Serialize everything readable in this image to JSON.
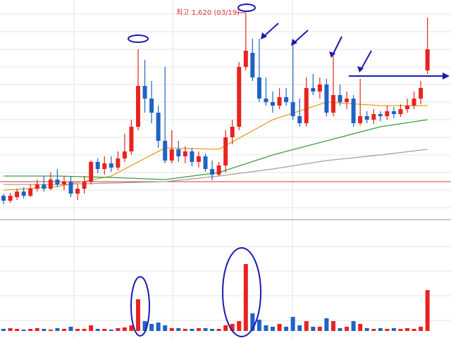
{
  "chart_data": {
    "type": "candlestick",
    "high_label": "최고 1,620 (03/19)",
    "ylim": [
      1036,
      1656
    ],
    "vlim": [
      0,
      155
    ],
    "up_color": "#e8231f",
    "down_color": "#1f63c4",
    "reference_line": {
      "value": 1140,
      "color": "#e03030"
    },
    "open": [
      1100,
      1086,
      1096,
      1112,
      1100,
      1120,
      1132,
      1120,
      1146,
      1132,
      1140,
      1106,
      1120,
      1140,
      1196,
      1176,
      1192,
      1180,
      1206,
      1226,
      1296,
      1412,
      1376,
      1336,
      1256,
      1200,
      1232,
      1212,
      1226,
      1196,
      1212,
      1176,
      1160,
      1186,
      1266,
      1296,
      1466,
      1506,
      1436,
      1376,
      1366,
      1356,
      1380,
      1366,
      1326,
      1306,
      1406,
      1396,
      1416,
      1336,
      1386,
      1366,
      1376,
      1306,
      1326,
      1316,
      1332,
      1326,
      1340,
      1332,
      1346,
      1356,
      1376,
      1456
    ],
    "high": [
      1106,
      1108,
      1120,
      1124,
      1132,
      1146,
      1156,
      1166,
      1176,
      1156,
      1156,
      1132,
      1156,
      1200,
      1206,
      1212,
      1212,
      1226,
      1276,
      1316,
      1516,
      1486,
      1426,
      1356,
      1466,
      1286,
      1256,
      1240,
      1236,
      1226,
      1220,
      1200,
      1196,
      1286,
      1316,
      1480,
      1620,
      1546,
      1546,
      1436,
      1396,
      1406,
      1406,
      1532,
      1376,
      1436,
      1446,
      1436,
      1432,
      1496,
      1416,
      1396,
      1386,
      1432,
      1340,
      1346,
      1340,
      1356,
      1352,
      1360,
      1376,
      1396,
      1426,
      1606
    ],
    "low": [
      1076,
      1080,
      1088,
      1092,
      1096,
      1112,
      1112,
      1116,
      1124,
      1116,
      1096,
      1088,
      1106,
      1132,
      1164,
      1160,
      1168,
      1172,
      1196,
      1216,
      1286,
      1336,
      1306,
      1236,
      1192,
      1192,
      1196,
      1192,
      1184,
      1180,
      1168,
      1144,
      1156,
      1166,
      1246,
      1286,
      1456,
      1426,
      1366,
      1356,
      1336,
      1346,
      1356,
      1316,
      1296,
      1296,
      1386,
      1376,
      1326,
      1326,
      1356,
      1346,
      1296,
      1300,
      1306,
      1304,
      1312,
      1316,
      1320,
      1324,
      1336,
      1346,
      1360,
      1446
    ],
    "close": [
      1086,
      1100,
      1112,
      1100,
      1120,
      1132,
      1120,
      1146,
      1132,
      1140,
      1106,
      1120,
      1140,
      1196,
      1176,
      1192,
      1180,
      1206,
      1226,
      1296,
      1412,
      1376,
      1336,
      1256,
      1200,
      1232,
      1212,
      1226,
      1196,
      1212,
      1176,
      1160,
      1186,
      1266,
      1296,
      1466,
      1512,
      1436,
      1376,
      1366,
      1356,
      1380,
      1366,
      1326,
      1306,
      1406,
      1396,
      1416,
      1336,
      1386,
      1366,
      1376,
      1306,
      1326,
      1316,
      1332,
      1326,
      1340,
      1332,
      1346,
      1356,
      1376,
      1406,
      1516
    ],
    "volume": [
      3,
      4,
      3,
      2,
      3,
      4,
      3,
      2,
      4,
      3,
      6,
      3,
      3,
      8,
      3,
      3,
      2,
      4,
      5,
      8,
      45,
      14,
      10,
      12,
      8,
      4,
      4,
      3,
      3,
      4,
      4,
      3,
      3,
      8,
      10,
      14,
      95,
      25,
      16,
      8,
      6,
      10,
      6,
      20,
      8,
      14,
      6,
      6,
      18,
      14,
      4,
      6,
      14,
      10,
      4,
      3,
      4,
      3,
      4,
      3,
      4,
      3,
      6,
      58
    ],
    "ma_x": [
      0,
      8,
      16,
      24,
      32,
      40,
      48,
      56,
      63
    ],
    "moving_averages": [
      {
        "color": "#e8a020",
        "values": [
          1116,
          1126,
          1156,
          1236,
          1232,
          1316,
          1366,
          1356,
          1356
        ]
      },
      {
        "color": "#3aa040",
        "values": [
          1156,
          1156,
          1152,
          1146,
          1166,
          1216,
          1256,
          1296,
          1316
        ]
      },
      {
        "color": "#a0a0a0",
        "values": [
          1132,
          1132,
          1136,
          1140,
          1156,
          1176,
          1200,
          1216,
          1232
        ]
      }
    ]
  }
}
